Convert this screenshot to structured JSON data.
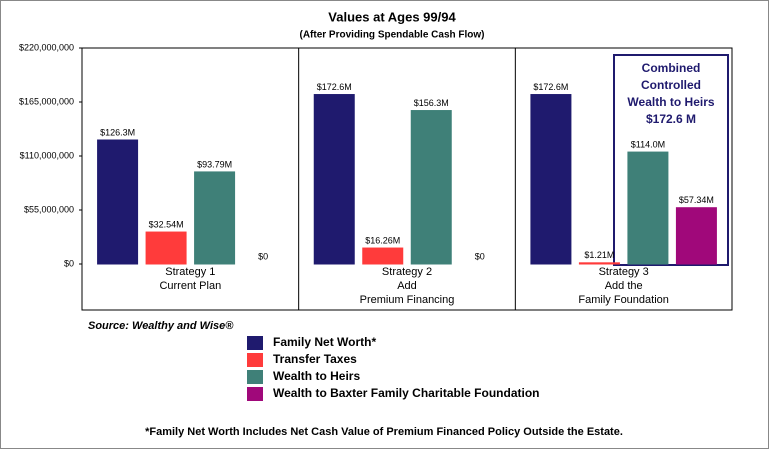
{
  "chart_data": {
    "type": "bar",
    "title": "Values at Ages 99/94",
    "subtitle": "(After Providing Spendable Cash Flow)",
    "categories": [
      [
        "Strategy 1",
        "Current Plan"
      ],
      [
        "Strategy 2",
        "Add",
        "Premium Financing"
      ],
      [
        "Strategy 3",
        "Add the",
        "Family Foundation"
      ]
    ],
    "series": [
      {
        "name": "Family Net Worth*",
        "color": "#1f1a6e",
        "values": [
          126300000,
          172600000,
          172600000
        ],
        "value_labels": [
          "$126.3M",
          "$172.6M",
          "$172.6M"
        ]
      },
      {
        "name": "Transfer Taxes",
        "color": "#ff3b3b",
        "values": [
          32540000,
          16260000,
          1210000
        ],
        "value_labels": [
          "$32.54M",
          "$16.26M",
          "$1.21M"
        ]
      },
      {
        "name": "Wealth to Heirs",
        "color": "#3f8078",
        "values": [
          93790000,
          156300000,
          114000000
        ],
        "value_labels": [
          "$93.79M",
          "$156.3M",
          "$114.0M"
        ]
      },
      {
        "name": "Wealth to Baxter Family Charitable Foundation",
        "color": "#a0087a",
        "values": [
          0,
          0,
          57340000
        ],
        "value_labels": [
          "$0",
          "$0",
          "$57.34M"
        ]
      }
    ],
    "ylim": [
      0,
      220000000
    ],
    "yticks": [
      {
        "value": 0,
        "label": "$0"
      },
      {
        "value": 55000000,
        "label": "$55,000,000"
      },
      {
        "value": 110000000,
        "label": "$110,000,000"
      },
      {
        "value": 165000000,
        "label": "$165,000,000"
      },
      {
        "value": 220000000,
        "label": "$220,000,000"
      }
    ],
    "annotation": [
      "Combined",
      "Controlled",
      "Wealth to Heirs",
      "$172.6 M"
    ],
    "source": "Source: Wealthy and Wise®",
    "footnote": "*Family Net Worth Includes Net Cash Value of Premium Financed Policy Outside the Estate."
  }
}
